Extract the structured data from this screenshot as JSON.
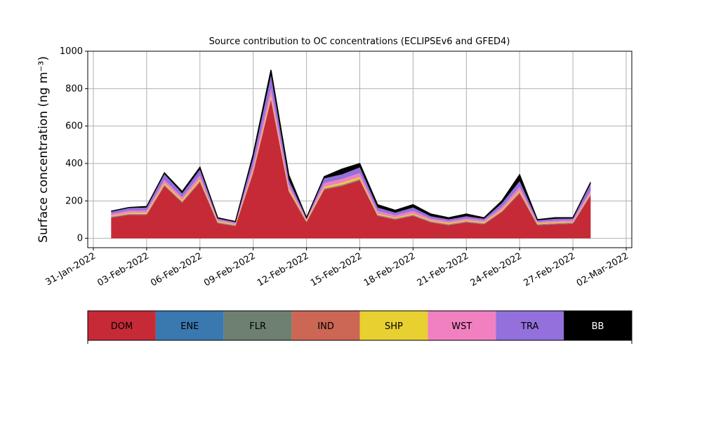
{
  "chart_data": {
    "type": "stacked_area",
    "title": "Source contribution to OC concentrations (ECLIPSEv6 and GFED4)",
    "y_label": "Surface concentration (ng m⁻³)",
    "x": [
      "2022-02-01",
      "2022-02-02",
      "2022-02-03",
      "2022-02-04",
      "2022-02-05",
      "2022-02-06",
      "2022-02-07",
      "2022-02-08",
      "2022-02-09",
      "2022-02-10",
      "2022-02-11",
      "2022-02-12",
      "2022-02-13",
      "2022-02-14",
      "2022-02-15",
      "2022-02-16",
      "2022-02-17",
      "2022-02-18",
      "2022-02-19",
      "2022-02-20",
      "2022-02-21",
      "2022-02-22",
      "2022-02-23",
      "2022-02-24",
      "2022-02-25",
      "2022-02-26",
      "2022-02-27",
      "2022-02-28"
    ],
    "series": [
      {
        "name": "DOM",
        "color": "#c62a37",
        "values": [
          110,
          125,
          125,
          280,
          190,
          300,
          80,
          65,
          350,
          740,
          250,
          85,
          260,
          280,
          310,
          120,
          100,
          120,
          85,
          70,
          85,
          75,
          140,
          240,
          70,
          75,
          78,
          230
        ]
      },
      {
        "name": "ENE",
        "color": "#3a78b0",
        "values": [
          2,
          2,
          2,
          2,
          2,
          2,
          2,
          2,
          2,
          2,
          2,
          2,
          2,
          2,
          2,
          2,
          2,
          2,
          2,
          2,
          2,
          2,
          2,
          2,
          2,
          2,
          2,
          2
        ]
      },
      {
        "name": "FLR",
        "color": "#6e8070",
        "values": [
          1,
          1,
          1,
          1,
          1,
          1,
          1,
          1,
          1,
          1,
          1,
          1,
          1,
          1,
          1,
          1,
          1,
          1,
          1,
          1,
          1,
          1,
          1,
          1,
          1,
          1,
          1,
          1
        ]
      },
      {
        "name": "IND",
        "color": "#cc6655",
        "values": [
          3,
          3,
          3,
          4,
          4,
          4,
          3,
          3,
          4,
          5,
          4,
          3,
          4,
          4,
          4,
          3,
          3,
          3,
          3,
          3,
          3,
          3,
          3,
          4,
          3,
          3,
          3,
          3
        ]
      },
      {
        "name": "SHP",
        "color": "#e8d030",
        "values": [
          4,
          5,
          6,
          8,
          8,
          10,
          5,
          4,
          8,
          12,
          10,
          5,
          8,
          10,
          10,
          6,
          5,
          6,
          5,
          5,
          5,
          5,
          6,
          8,
          4,
          4,
          4,
          6
        ]
      },
      {
        "name": "WST",
        "color": "#f080c0",
        "values": [
          10,
          12,
          12,
          18,
          15,
          20,
          8,
          6,
          25,
          40,
          20,
          7,
          20,
          20,
          22,
          15,
          12,
          15,
          10,
          10,
          10,
          9,
          15,
          20,
          8,
          9,
          9,
          15
        ]
      },
      {
        "name": "TRA",
        "color": "#9370db",
        "values": [
          12,
          14,
          15,
          30,
          20,
          30,
          7,
          6,
          40,
          70,
          25,
          5,
          25,
          25,
          30,
          18,
          14,
          18,
          12,
          10,
          12,
          9,
          20,
          30,
          8,
          10,
          9,
          35
        ]
      },
      {
        "name": "BB",
        "color": "#000000",
        "values": [
          3,
          3,
          6,
          7,
          10,
          13,
          4,
          3,
          20,
          30,
          28,
          2,
          10,
          28,
          21,
          15,
          13,
          15,
          12,
          9,
          12,
          6,
          13,
          35,
          4,
          6,
          4,
          8
        ]
      }
    ],
    "xlim": [
      "2022-01-31",
      "2022-03-02"
    ],
    "xticks": [
      {
        "value": "2022-01-31",
        "label": "31-Jan-2022"
      },
      {
        "value": "2022-02-03",
        "label": "03-Feb-2022"
      },
      {
        "value": "2022-02-06",
        "label": "06-Feb-2022"
      },
      {
        "value": "2022-02-09",
        "label": "09-Feb-2022"
      },
      {
        "value": "2022-02-12",
        "label": "12-Feb-2022"
      },
      {
        "value": "2022-02-15",
        "label": "15-Feb-2022"
      },
      {
        "value": "2022-02-18",
        "label": "18-Feb-2022"
      },
      {
        "value": "2022-02-21",
        "label": "21-Feb-2022"
      },
      {
        "value": "2022-02-24",
        "label": "24-Feb-2022"
      },
      {
        "value": "2022-02-27",
        "label": "27-Feb-2022"
      },
      {
        "value": "2022-03-02",
        "label": "02-Mar-2022"
      }
    ],
    "ylim": [
      -50,
      1000
    ],
    "yticks": [
      0,
      200,
      400,
      600,
      800,
      1000
    ],
    "grid": true
  }
}
